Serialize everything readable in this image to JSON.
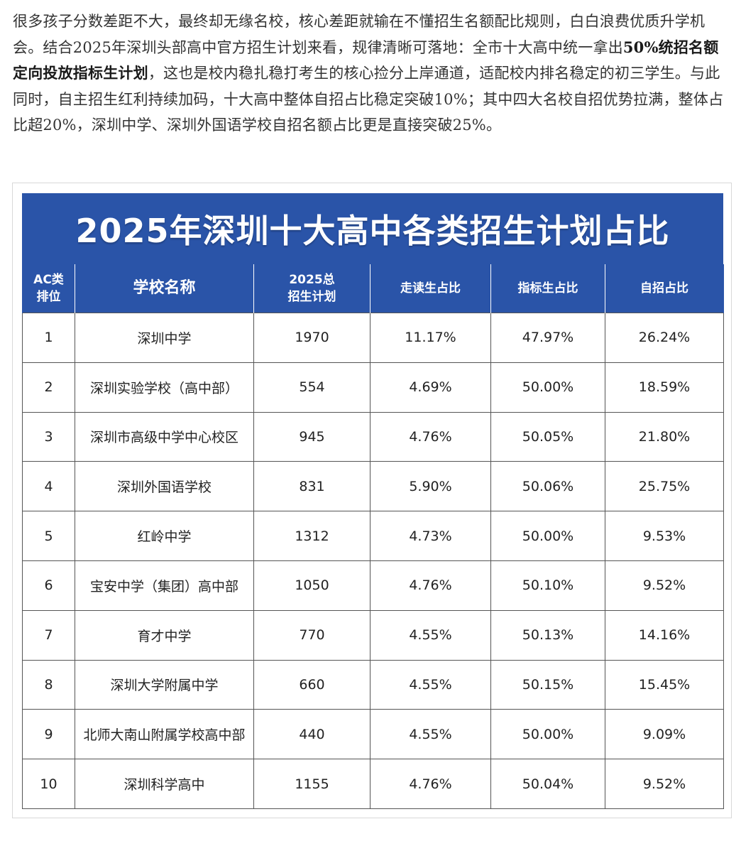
{
  "article": {
    "text_1": "很多孩子分数差距不大，最终却无缘名校，核心差距就输在不懂招生名额配比规则，白白浪费优质升学机会。结合2025年深圳头部高中官方招生计划来看，规律清晰可落地：全市十大高中统一拿出",
    "bold": "50%统招名额定向投放指标生计划",
    "text_2": "，这也是校内稳扎稳打考生的核心捡分上岸通道，适配校内排名稳定的初三学生。与此同时，自主招生红利持续加码，十大高中整体自招占比稳定突破10%；其中四大名校自招优势拉满，整体占比超20%，深圳中学、深圳外国语学校自招名额占比更是直接突破25%。"
  },
  "figure": {
    "title": "2025年深圳十大高中各类招生计划占比",
    "headers": {
      "rank_line1": "AC类",
      "rank_line2": "排位",
      "school": "学校名称",
      "plan_line1": "2025总",
      "plan_line2": "招生计划",
      "boarding": "走读生占比",
      "quota": "指标生占比",
      "self": "自招占比"
    },
    "rows": [
      {
        "rank": "1",
        "school": "深圳中学",
        "plan": "1970",
        "boarding": "11.17%",
        "quota": "47.97%",
        "self": "26.24%"
      },
      {
        "rank": "2",
        "school": "深圳实验学校（高中部）",
        "plan": "554",
        "boarding": "4.69%",
        "quota": "50.00%",
        "self": "18.59%"
      },
      {
        "rank": "3",
        "school": "深圳市高级中学中心校区",
        "plan": "945",
        "boarding": "4.76%",
        "quota": "50.05%",
        "self": "21.80%"
      },
      {
        "rank": "4",
        "school": "深圳外国语学校",
        "plan": "831",
        "boarding": "5.90%",
        "quota": "50.06%",
        "self": "25.75%"
      },
      {
        "rank": "5",
        "school": "红岭中学",
        "plan": "1312",
        "boarding": "4.73%",
        "quota": "50.00%",
        "self": "9.53%"
      },
      {
        "rank": "6",
        "school": "宝安中学（集团）高中部",
        "plan": "1050",
        "boarding": "4.76%",
        "quota": "50.10%",
        "self": "9.52%"
      },
      {
        "rank": "7",
        "school": "育才中学",
        "plan": "770",
        "boarding": "4.55%",
        "quota": "50.13%",
        "self": "14.16%"
      },
      {
        "rank": "8",
        "school": "深圳大学附属中学",
        "plan": "660",
        "boarding": "4.55%",
        "quota": "50.15%",
        "self": "15.45%"
      },
      {
        "rank": "9",
        "school": "北师大南山附属学校高中部",
        "plan": "440",
        "boarding": "4.55%",
        "quota": "50.00%",
        "self": "9.09%"
      },
      {
        "rank": "10",
        "school": "深圳科学高中",
        "plan": "1155",
        "boarding": "4.76%",
        "quota": "50.04%",
        "self": "9.52%"
      }
    ],
    "colors": {
      "header_blue": "#2a54a8",
      "header_text": "#ffffff",
      "grid_line": "#555555"
    }
  }
}
